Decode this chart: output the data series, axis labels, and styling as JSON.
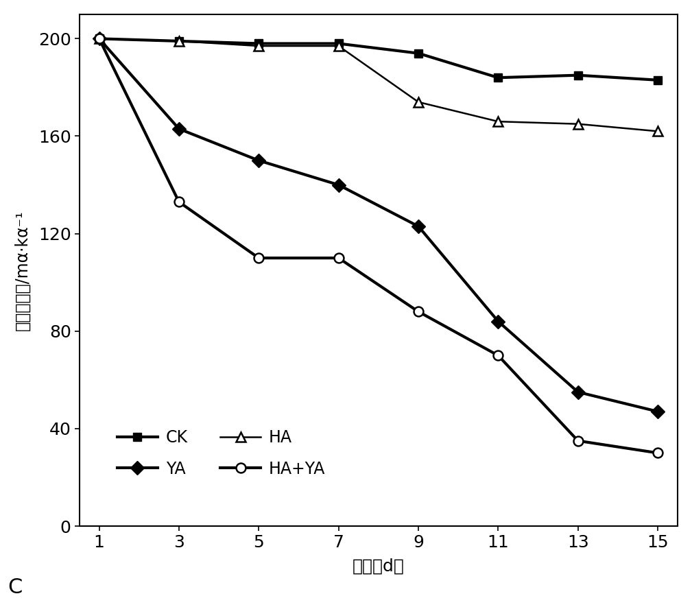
{
  "x": [
    1,
    3,
    5,
    7,
    9,
    11,
    13,
    15
  ],
  "CK": [
    200,
    199,
    198,
    198,
    194,
    184,
    185,
    183
  ],
  "YA": [
    200,
    163,
    150,
    140,
    123,
    84,
    55,
    47
  ],
  "HA": [
    200,
    199,
    197,
    197,
    174,
    166,
    165,
    162
  ],
  "HA_YA": [
    200,
    133,
    110,
    110,
    88,
    70,
    35,
    30
  ],
  "ylabel_chars": [
    "污染物浓度/mα·kα-1"
  ],
  "ylabel_display": "污染物浓度/mα·kα⁻¹",
  "xlabel": "时间（d）",
  "label_C": "C",
  "ylim": [
    0,
    210
  ],
  "yticks": [
    0,
    40,
    80,
    120,
    160,
    200
  ],
  "xticks": [
    1,
    3,
    5,
    7,
    9,
    11,
    13,
    15
  ],
  "line_color": "#000000",
  "linewidth_thin": 1.8,
  "linewidth_thick": 3.0,
  "markersize": 9,
  "tick_fontsize": 18,
  "legend_fontsize": 17,
  "xlabel_fontsize": 18,
  "ylabel_fontsize": 17
}
